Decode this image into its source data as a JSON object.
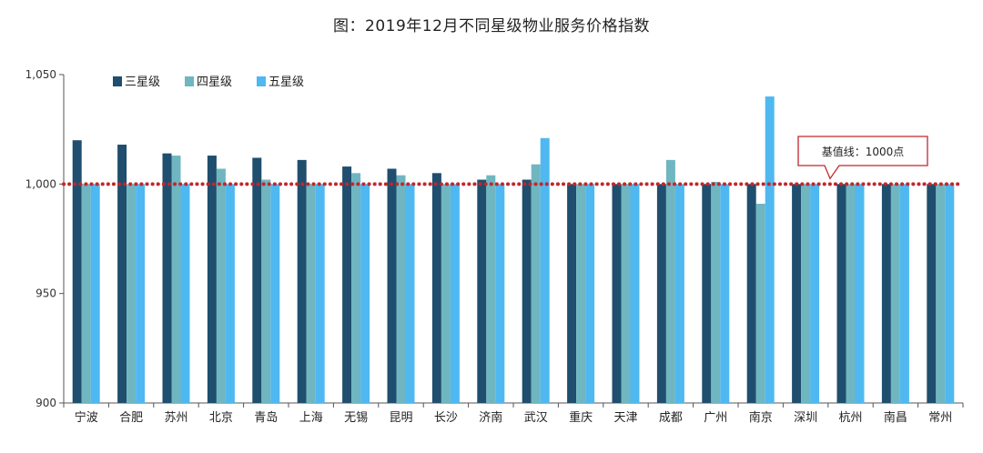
{
  "chart_data": {
    "type": "bar",
    "title": "图：2019年12月不同星级物业服务价格指数",
    "categories": [
      "宁波",
      "合肥",
      "苏州",
      "北京",
      "青岛",
      "上海",
      "无锡",
      "昆明",
      "长沙",
      "济南",
      "武汉",
      "重庆",
      "天津",
      "成都",
      "广州",
      "南京",
      "深圳",
      "杭州",
      "南昌",
      "常州"
    ],
    "series": [
      {
        "name": "三星级",
        "color": "#1f4e6e",
        "values": [
          1020,
          1018,
          1014,
          1013,
          1012,
          1011,
          1008,
          1007,
          1005,
          1002,
          1002,
          1000,
          1000,
          1000,
          1000,
          1000,
          1000,
          1000,
          1000,
          1000
        ]
      },
      {
        "name": "四星级",
        "color": "#6fb6c1",
        "values": [
          1000,
          1000,
          1013,
          1007,
          1002,
          1000,
          1005,
          1004,
          1000,
          1004,
          1009,
          1000,
          1000,
          1011,
          1001,
          991,
          1000,
          1000,
          1000,
          1000
        ]
      },
      {
        "name": "五星级",
        "color": "#4fb8f0",
        "values": [
          1000,
          1000,
          1000,
          1000,
          1000,
          1000,
          1000,
          1000,
          1000,
          1000,
          1021,
          1000,
          1000,
          1000,
          1000,
          1040,
          1000,
          1000,
          1000,
          1000
        ]
      }
    ],
    "ylim": [
      900,
      1050
    ],
    "yticks": [
      900,
      950,
      1000,
      1050
    ],
    "ytick_labels": [
      "900",
      "950",
      "1,000",
      "1,050"
    ],
    "baseline": {
      "value": 1000,
      "color": "#c0272d",
      "label": "基值线：1000点"
    },
    "legend_position": "top-left",
    "grid": false
  }
}
